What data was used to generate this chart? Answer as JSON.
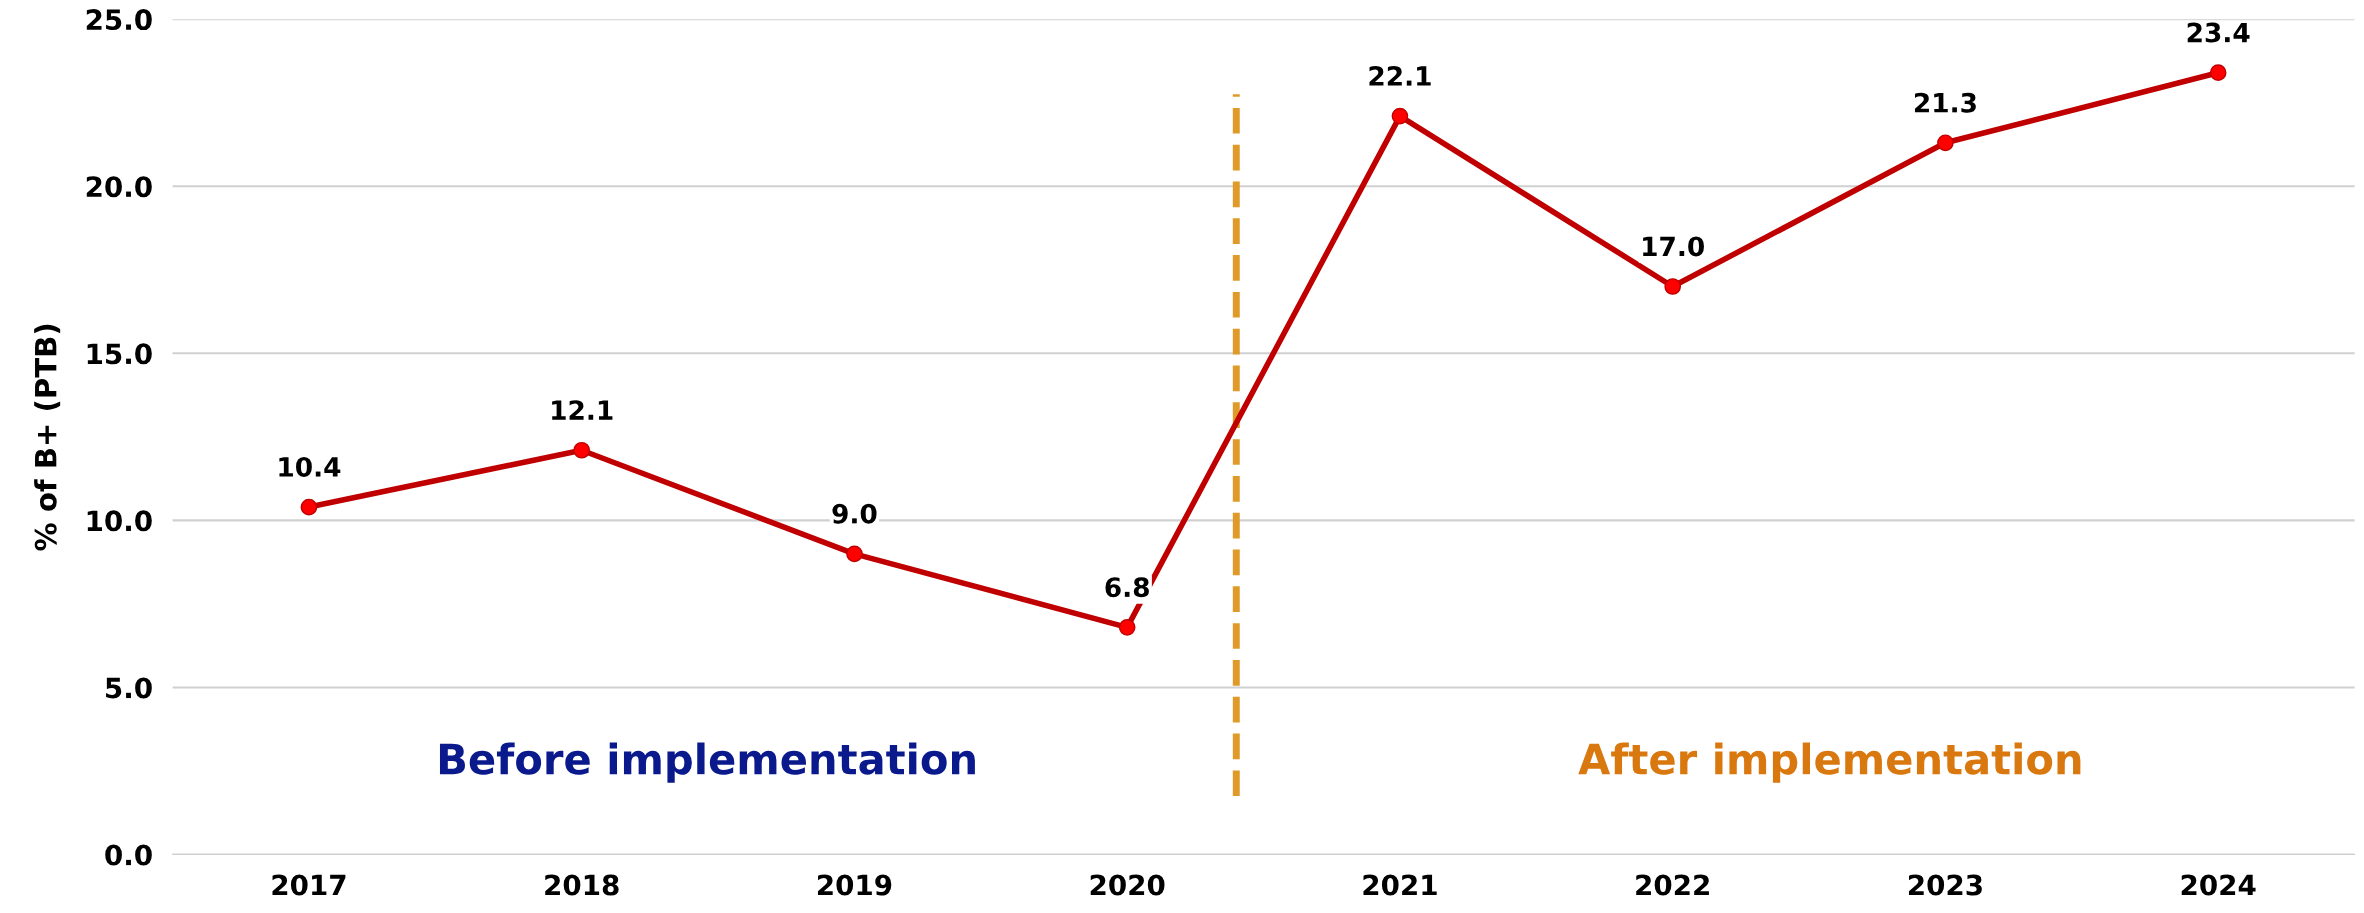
{
  "chart_data": {
    "type": "line",
    "ylabel": "% of B+ (PTB)",
    "x": [
      2017,
      2018,
      2019,
      2020,
      2021,
      2022,
      2023,
      2024
    ],
    "series": [
      {
        "color": "#c00000",
        "values": [
          10.4,
          12.1,
          9.0,
          6.8,
          22.1,
          17.0,
          21.3,
          23.4
        ],
        "value_labels": [
          "10.4",
          "12.1",
          "9.0",
          "6.8",
          "22.1",
          "17.0",
          "21.3",
          "23.4"
        ]
      }
    ],
    "xlim": [
      2016.5,
      2024.5
    ],
    "xticks": [
      2017,
      2018,
      2019,
      2020,
      2021,
      2022,
      2023,
      2024
    ],
    "ylim": [
      0,
      25
    ],
    "yticks": [
      {
        "value": 0,
        "label": "0.0"
      },
      {
        "value": 5,
        "label": "5.0"
      },
      {
        "value": 10,
        "label": "10.0"
      },
      {
        "value": 15,
        "label": "15.0"
      },
      {
        "value": 20,
        "label": "20.0"
      },
      {
        "value": 25,
        "label": "25.0"
      }
    ],
    "ref_lines": [
      {
        "axis": "x",
        "value": 2020.4,
        "color": "#e09a2a",
        "line_style": "dashed"
      }
    ],
    "annotations": [
      "Before implementation",
      "After implementation"
    ],
    "grid": "y",
    "marker": "circle",
    "line_style": "solid",
    "legend": false
  }
}
